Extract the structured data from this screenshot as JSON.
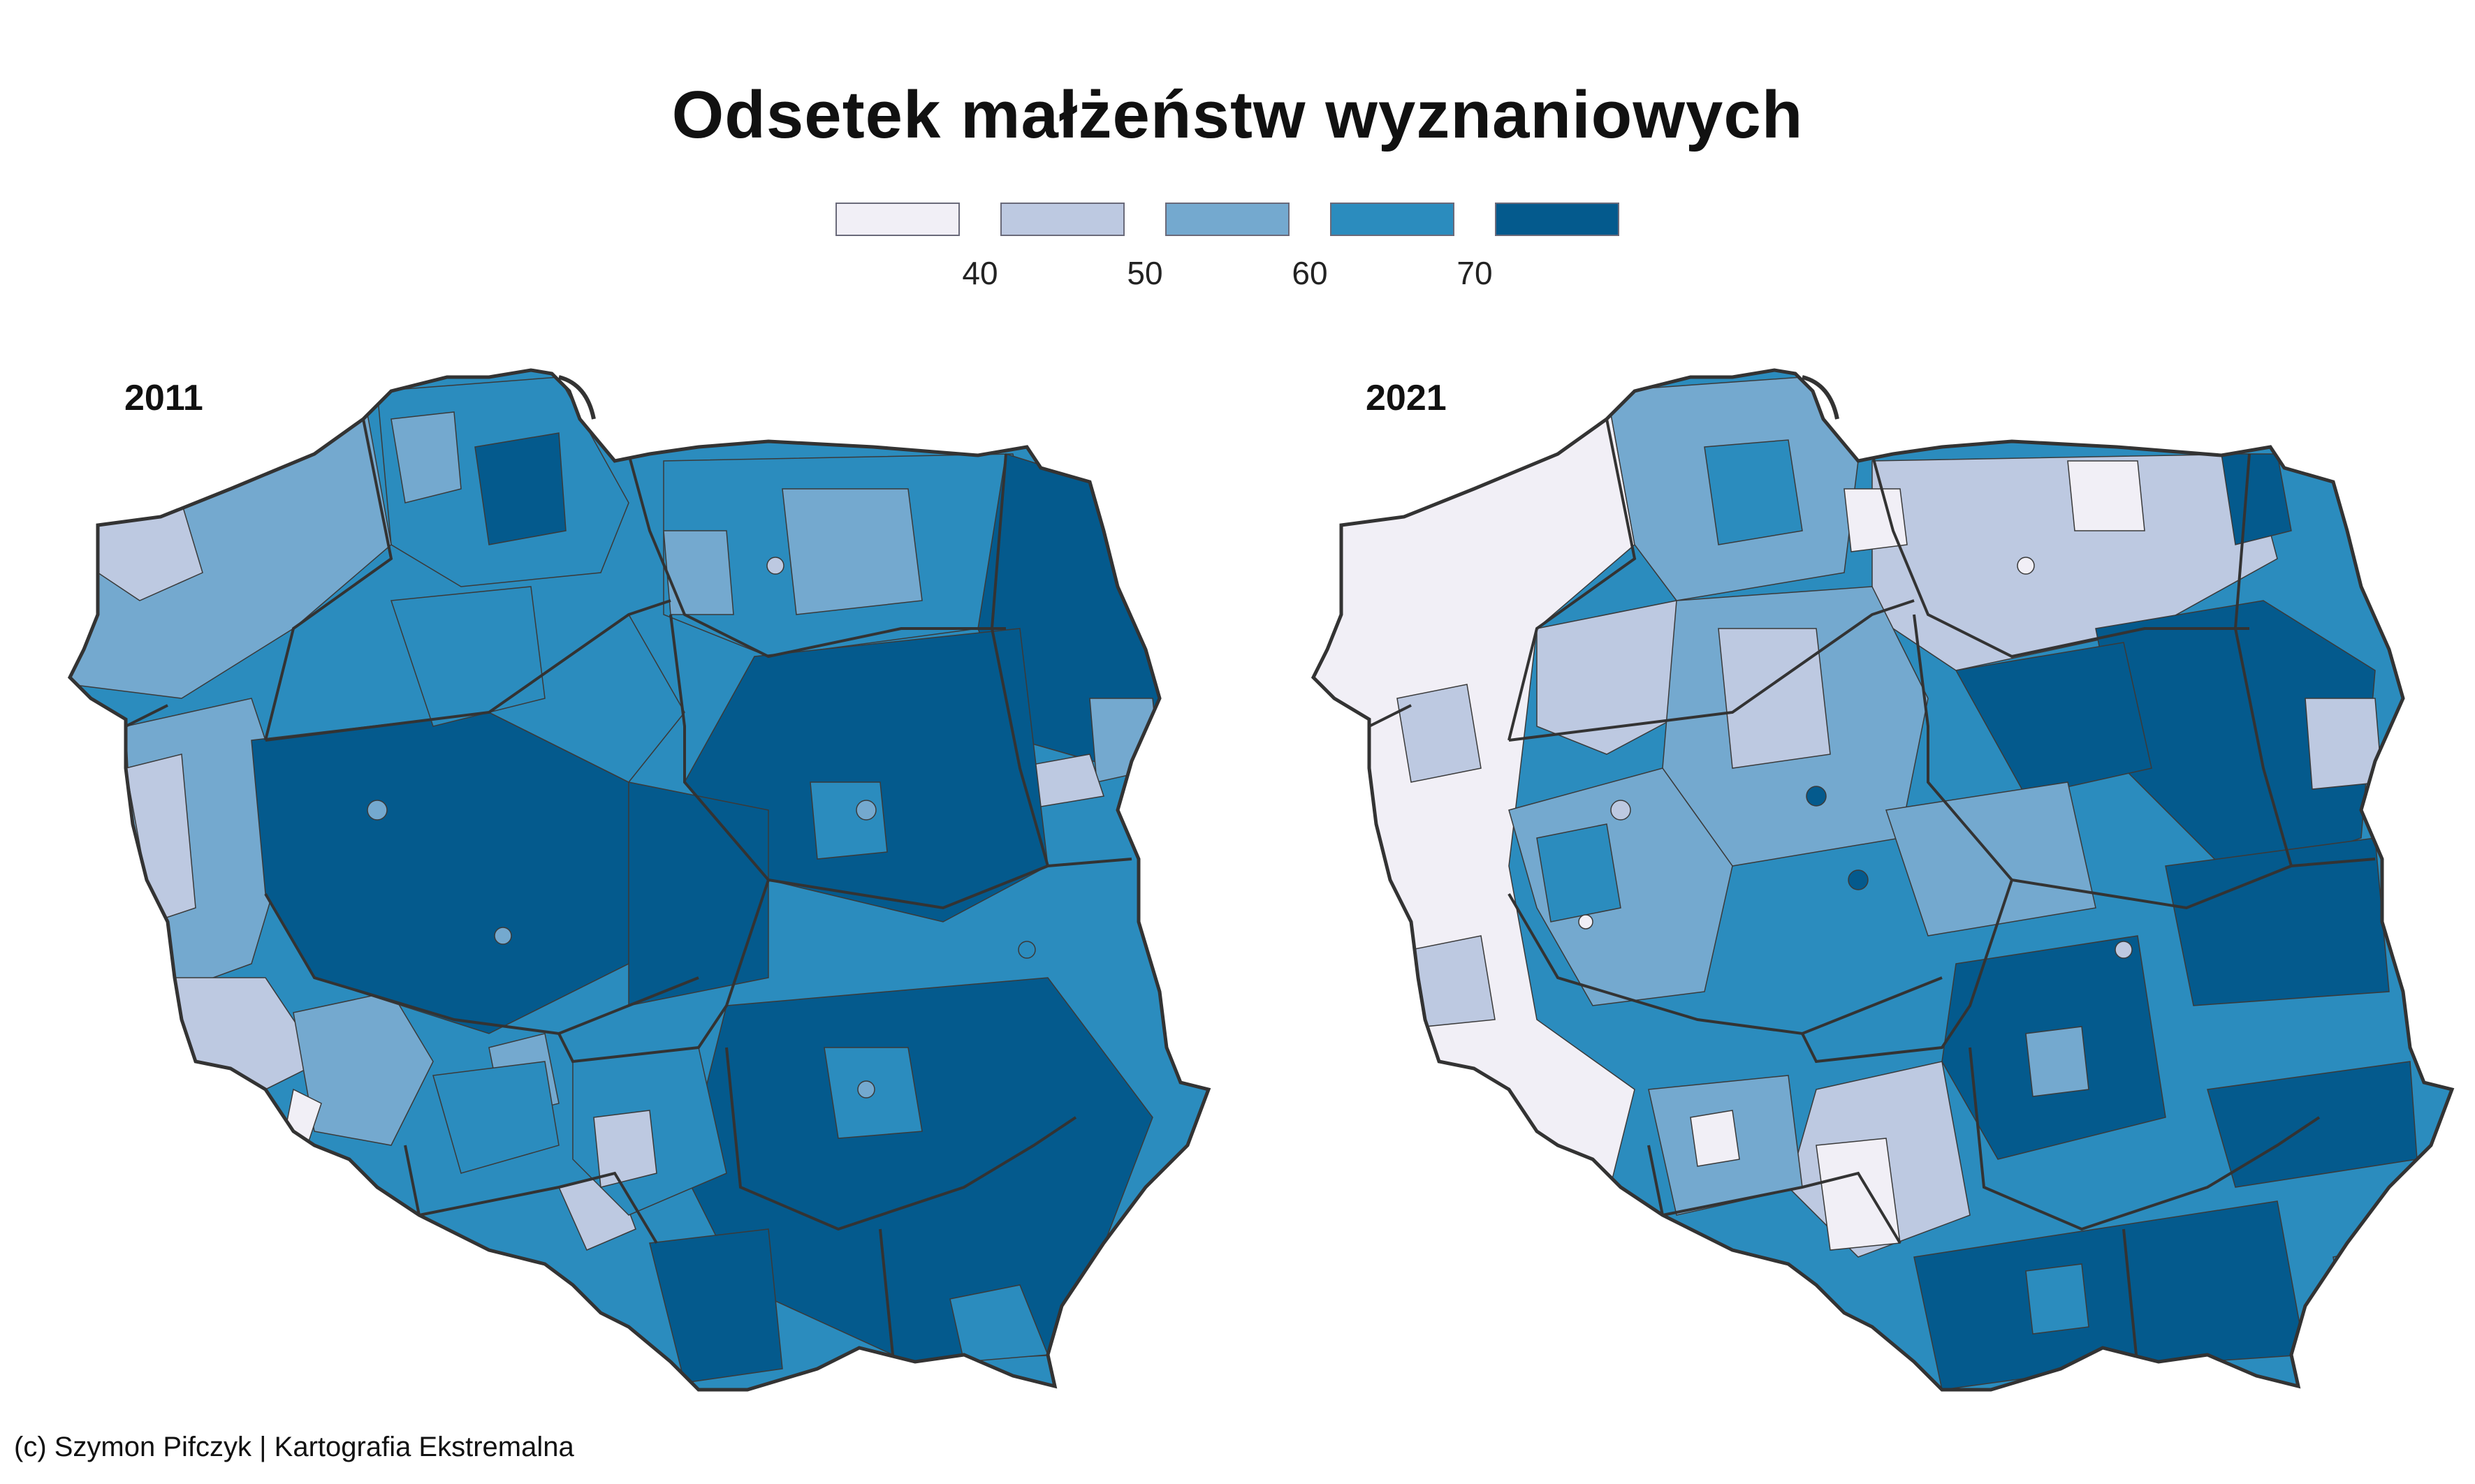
{
  "title": "Odsetek małżeństw wyznaniowych",
  "legend": {
    "colors": [
      "#f1eff6",
      "#bdc9e1",
      "#74a9cf",
      "#2b8cbe",
      "#045a8d"
    ],
    "breaks": [
      "40",
      "50",
      "60",
      "70"
    ]
  },
  "panels": [
    {
      "label": "2011"
    },
    {
      "label": "2021"
    }
  ],
  "credit": "(c) Szymon Pifczyk | Kartografia Ekstremalna"
}
